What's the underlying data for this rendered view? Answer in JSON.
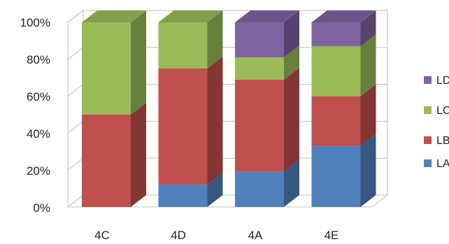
{
  "chart_data": {
    "type": "bar",
    "stacked": true,
    "percent": true,
    "three_d": true,
    "categories": [
      "4C",
      "4D",
      "4A",
      "4E"
    ],
    "ylim": [
      0,
      100
    ],
    "yticks": [
      "0%",
      "20%",
      "40%",
      "60%",
      "80%",
      "100%"
    ],
    "ytick_values": [
      0,
      20,
      40,
      60,
      80,
      100
    ],
    "grid": true,
    "legend_position": "right",
    "series": [
      {
        "name": "LA",
        "color": "#4F81BD",
        "values": [
          0,
          12,
          19,
          33
        ]
      },
      {
        "name": "LB",
        "color": "#C0504D",
        "values": [
          50,
          63,
          50,
          27
        ]
      },
      {
        "name": "LC",
        "color": "#9BBB59",
        "values": [
          50,
          25,
          12,
          27
        ]
      },
      {
        "name": "LD",
        "color": "#8064A2",
        "values": [
          0,
          0,
          19,
          13
        ]
      }
    ]
  }
}
